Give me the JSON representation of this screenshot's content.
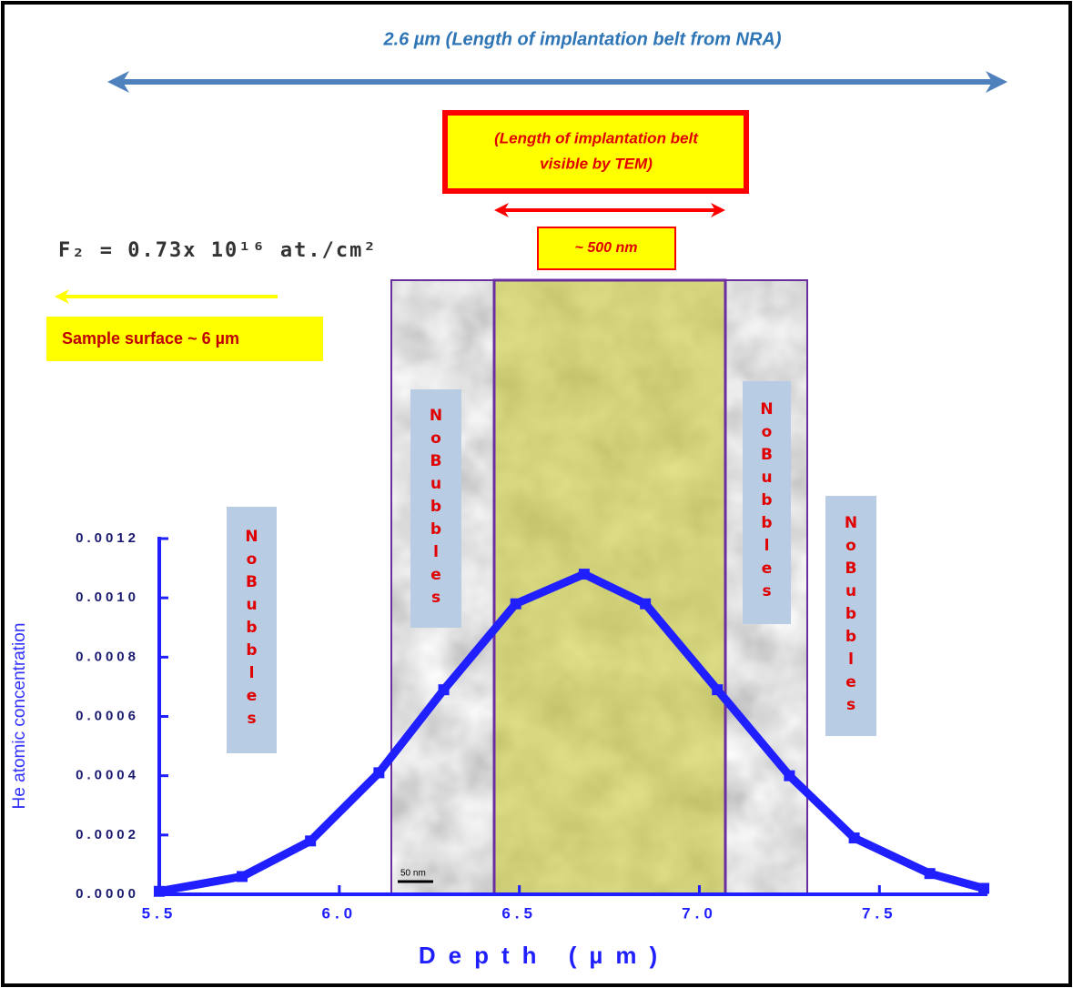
{
  "chart_data": {
    "type": "line",
    "color": "#1f1fff",
    "x_label": "Depth (µm)",
    "y_label": "He atomic concentration",
    "x": [
      5.5,
      5.73,
      5.92,
      6.11,
      6.29,
      6.49,
      6.68,
      6.85,
      7.05,
      7.25,
      7.43,
      7.64,
      7.79
    ],
    "values": [
      1e-05,
      6e-05,
      0.00018,
      0.00041,
      0.00069,
      0.00098,
      0.00108,
      0.00098,
      0.00069,
      0.0004,
      0.00019,
      7e-05,
      2e-05
    ],
    "xlim": [
      5.5,
      7.8
    ],
    "ylim": [
      0,
      0.0012
    ],
    "xticks": [
      {
        "value": 5.5,
        "label": "5.5"
      },
      {
        "value": 6,
        "label": "6.0"
      },
      {
        "value": 6.5,
        "label": "6.5"
      },
      {
        "value": 7,
        "label": "7.0"
      },
      {
        "value": 7.5,
        "label": "7.5"
      }
    ],
    "yticks": [
      {
        "value": 0,
        "label": "0.0000"
      },
      {
        "value": 0.0002,
        "label": "0.0002"
      },
      {
        "value": 0.0004,
        "label": "0.0004"
      },
      {
        "value": 0.0006,
        "label": "0.0006"
      },
      {
        "value": 0.0008,
        "label": "0.0008"
      },
      {
        "value": 0.001,
        "label": "0.0010"
      },
      {
        "value": 0.0012,
        "label": "0.0012"
      }
    ],
    "annotations": [
      "2.6 µm (Length of implantation belt from NRA)",
      "(Length of implantation belt",
      "visible by TEM)",
      "~ 500 nm",
      "F₂ = 0.73x 10¹⁶ at./cm²",
      "Sample surface ~ 6 µm",
      "NoBubbles",
      "NoBubbles",
      "NoBubbles",
      "NoBubbles",
      "50 nm"
    ]
  }
}
